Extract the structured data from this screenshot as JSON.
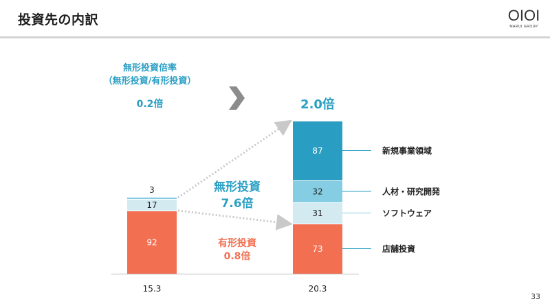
{
  "header": {
    "title": "投資先の内訳",
    "logo_mark": "OIOI",
    "logo_sub": "MARUI GROUP"
  },
  "page_number": "33",
  "ratio_panel": {
    "label": "無形投資倍率",
    "sub_label": "（無形投資/有形投資）",
    "before_value": "0.2倍",
    "after_value": "2.0倍"
  },
  "chart_data": {
    "type": "bar",
    "stacked": true,
    "categories": [
      "15.3",
      "20.3"
    ],
    "series": [
      {
        "name": "店舗投資",
        "values": [
          92,
          73
        ],
        "color": "#f36f52"
      },
      {
        "name": "ソフトウェア",
        "values": [
          17,
          31
        ],
        "color": "#d3eaf1"
      },
      {
        "name": "人材・研究開発",
        "values": [
          3,
          32
        ],
        "color": "#85cde3"
      },
      {
        "name": "新規事業領域",
        "values": [
          0,
          87
        ],
        "color": "#2a9dc2"
      }
    ],
    "segment_labels": [
      [
        "92",
        "17",
        "3"
      ],
      [
        "73",
        "31",
        "32",
        "87"
      ]
    ],
    "annotations": {
      "intangible_label": "無形投資",
      "intangible_value": "7.6倍",
      "tangible_label": "有形投資",
      "tangible_value": "0.8倍"
    },
    "legend_placement": "right",
    "colors": {
      "intangible_text": "#2b9fc4",
      "tangible_text": "#f36f52",
      "connector": "#c9c9c9",
      "axis": "#bbbbbb",
      "arrow": "#8c8c8c"
    }
  }
}
